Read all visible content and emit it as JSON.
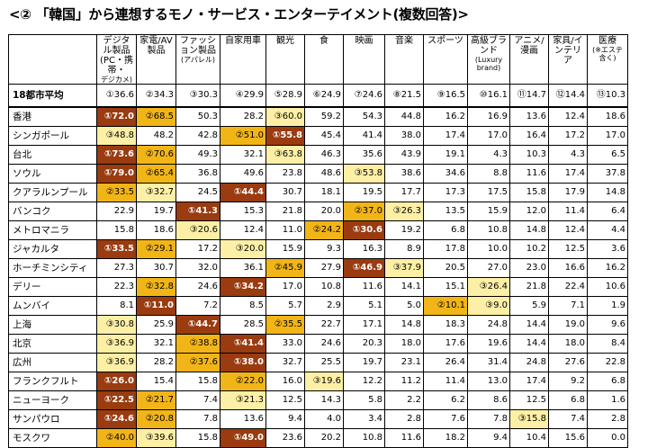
{
  "title": "<② 「韓国」から連想するモノ・サービス・エンターテイメント(複数回答)>",
  "headers": [
    {
      "main": "",
      "sub": ""
    },
    {
      "main": "デジタル製品(PC・携帯・",
      "sub": "デジカメ)"
    },
    {
      "main": "家電/AV製品",
      "sub": ""
    },
    {
      "main": "ファッション製品",
      "sub": "(アパレル)"
    },
    {
      "main": "自家用車",
      "sub": ""
    },
    {
      "main": "観光",
      "sub": ""
    },
    {
      "main": "食",
      "sub": ""
    },
    {
      "main": "映画",
      "sub": ""
    },
    {
      "main": "音楽",
      "sub": ""
    },
    {
      "main": "スポーツ",
      "sub": ""
    },
    {
      "main": "高級ブランド",
      "sub": "(Luxury brand)"
    },
    {
      "main": "アニメ/漫画",
      "sub": ""
    },
    {
      "main": "家具/インテリア",
      "sub": ""
    },
    {
      "main": "医療",
      "sub": "(※エステ含く)"
    }
  ],
  "rows": [
    {
      "city": "18都市平均",
      "cells": [
        [
          "①",
          "36.6"
        ],
        [
          "②",
          "34.3"
        ],
        [
          "③",
          "30.3"
        ],
        [
          "④",
          "29.9"
        ],
        [
          "⑤",
          "28.9"
        ],
        [
          "⑥",
          "24.9"
        ],
        [
          "⑦",
          "24.6"
        ],
        [
          "⑧",
          "21.5"
        ],
        [
          "⑨",
          "16.5"
        ],
        [
          "⑩",
          "16.1"
        ],
        [
          "⑪",
          "14.7"
        ],
        [
          "⑫",
          "14.4"
        ],
        [
          "⑬",
          "10.3"
        ]
      ]
    },
    {
      "city": "香港",
      "cells": [
        [
          "①",
          "72.0"
        ],
        [
          "②",
          "68.5"
        ],
        [
          "",
          "50.3"
        ],
        [
          "",
          "28.2"
        ],
        [
          "③",
          "60.0"
        ],
        [
          "",
          "59.2"
        ],
        [
          "",
          "54.3"
        ],
        [
          "",
          "44.8"
        ],
        [
          "",
          "16.2"
        ],
        [
          "",
          "16.9"
        ],
        [
          "",
          "13.6"
        ],
        [
          "",
          "12.4"
        ],
        [
          "",
          "18.6"
        ]
      ]
    },
    {
      "city": "シンガポール",
      "cells": [
        [
          "③",
          "48.8"
        ],
        [
          "",
          "48.2"
        ],
        [
          "",
          "42.8"
        ],
        [
          "②",
          "51.0"
        ],
        [
          "①",
          "55.8"
        ],
        [
          "",
          "45.4"
        ],
        [
          "",
          "41.4"
        ],
        [
          "",
          "38.0"
        ],
        [
          "",
          "17.4"
        ],
        [
          "",
          "17.0"
        ],
        [
          "",
          "16.4"
        ],
        [
          "",
          "17.2"
        ],
        [
          "",
          "17.0"
        ]
      ]
    },
    {
      "city": "台北",
      "cells": [
        [
          "①",
          "73.6"
        ],
        [
          "②",
          "70.6"
        ],
        [
          "",
          "49.3"
        ],
        [
          "",
          "32.1"
        ],
        [
          "③",
          "63.8"
        ],
        [
          "",
          "46.3"
        ],
        [
          "",
          "35.6"
        ],
        [
          "",
          "43.9"
        ],
        [
          "",
          "19.1"
        ],
        [
          "",
          "4.3"
        ],
        [
          "",
          "10.3"
        ],
        [
          "",
          "4.3"
        ],
        [
          "",
          "6.5"
        ]
      ]
    },
    {
      "city": "ソウル",
      "cells": [
        [
          "①",
          "79.0"
        ],
        [
          "②",
          "65.4"
        ],
        [
          "",
          "36.8"
        ],
        [
          "",
          "49.6"
        ],
        [
          "",
          "23.8"
        ],
        [
          "",
          "48.6"
        ],
        [
          "③",
          "53.8"
        ],
        [
          "",
          "38.6"
        ],
        [
          "",
          "34.6"
        ],
        [
          "",
          "8.8"
        ],
        [
          "",
          "11.6"
        ],
        [
          "",
          "17.4"
        ],
        [
          "",
          "37.8"
        ]
      ]
    },
    {
      "city": "クアラルンプール",
      "cells": [
        [
          "②",
          "33.5"
        ],
        [
          "③",
          "32.7"
        ],
        [
          "",
          "24.5"
        ],
        [
          "①",
          "44.4"
        ],
        [
          "",
          "30.7"
        ],
        [
          "",
          "18.1"
        ],
        [
          "",
          "19.5"
        ],
        [
          "",
          "17.7"
        ],
        [
          "",
          "17.3"
        ],
        [
          "",
          "17.5"
        ],
        [
          "",
          "15.8"
        ],
        [
          "",
          "17.9"
        ],
        [
          "",
          "14.8"
        ]
      ]
    },
    {
      "city": "バンコク",
      "cells": [
        [
          "",
          "22.9"
        ],
        [
          "",
          "19.7"
        ],
        [
          "①",
          "41.3"
        ],
        [
          "",
          "15.3"
        ],
        [
          "",
          "21.8"
        ],
        [
          "",
          "20.0"
        ],
        [
          "②",
          "37.0"
        ],
        [
          "③",
          "26.3"
        ],
        [
          "",
          "13.5"
        ],
        [
          "",
          "15.9"
        ],
        [
          "",
          "12.0"
        ],
        [
          "",
          "11.4"
        ],
        [
          "",
          "6.4"
        ]
      ]
    },
    {
      "city": "メトロマニラ",
      "cells": [
        [
          "",
          "15.8"
        ],
        [
          "",
          "18.6"
        ],
        [
          "③",
          "20.6"
        ],
        [
          "",
          "12.4"
        ],
        [
          "",
          "11.0"
        ],
        [
          "②",
          "24.2"
        ],
        [
          "①",
          "30.6"
        ],
        [
          "",
          "19.2"
        ],
        [
          "",
          "6.8"
        ],
        [
          "",
          "10.8"
        ],
        [
          "",
          "14.8"
        ],
        [
          "",
          "12.4"
        ],
        [
          "",
          "4.4"
        ]
      ]
    },
    {
      "city": "ジャカルタ",
      "cells": [
        [
          "①",
          "33.5"
        ],
        [
          "②",
          "29.1"
        ],
        [
          "",
          "17.2"
        ],
        [
          "③",
          "20.0"
        ],
        [
          "",
          "15.9"
        ],
        [
          "",
          "9.3"
        ],
        [
          "",
          "16.3"
        ],
        [
          "",
          "8.9"
        ],
        [
          "",
          "17.8"
        ],
        [
          "",
          "10.0"
        ],
        [
          "",
          "10.2"
        ],
        [
          "",
          "12.5"
        ],
        [
          "",
          "3.6"
        ]
      ]
    },
    {
      "city": "ホーチミンシティ",
      "cells": [
        [
          "",
          "27.3"
        ],
        [
          "",
          "30.7"
        ],
        [
          "",
          "32.0"
        ],
        [
          "",
          "36.1"
        ],
        [
          "②",
          "45.9"
        ],
        [
          "",
          "27.9"
        ],
        [
          "①",
          "46.9"
        ],
        [
          "③",
          "37.9"
        ],
        [
          "",
          "20.5"
        ],
        [
          "",
          "27.0"
        ],
        [
          "",
          "23.0"
        ],
        [
          "",
          "16.6"
        ],
        [
          "",
          "16.2"
        ]
      ]
    },
    {
      "city": "デリー",
      "cells": [
        [
          "",
          "22.3"
        ],
        [
          "②",
          "32.8"
        ],
        [
          "",
          "24.6"
        ],
        [
          "①",
          "34.2"
        ],
        [
          "",
          "17.0"
        ],
        [
          "",
          "10.8"
        ],
        [
          "",
          "11.6"
        ],
        [
          "",
          "14.1"
        ],
        [
          "",
          "15.1"
        ],
        [
          "③",
          "26.4"
        ],
        [
          "",
          "21.8"
        ],
        [
          "",
          "22.4"
        ],
        [
          "",
          "10.6"
        ]
      ]
    },
    {
      "city": "ムンバイ",
      "cells": [
        [
          "",
          "8.1"
        ],
        [
          "①",
          "11.0"
        ],
        [
          "",
          "7.2"
        ],
        [
          "",
          "8.5"
        ],
        [
          "",
          "5.7"
        ],
        [
          "",
          "2.9"
        ],
        [
          "",
          "5.1"
        ],
        [
          "",
          "5.0"
        ],
        [
          "②",
          "10.1"
        ],
        [
          "③",
          "9.0"
        ],
        [
          "",
          "5.9"
        ],
        [
          "",
          "7.1"
        ],
        [
          "",
          "1.9"
        ]
      ]
    },
    {
      "city": "上海",
      "cells": [
        [
          "③",
          "30.8"
        ],
        [
          "",
          "25.9"
        ],
        [
          "①",
          "44.7"
        ],
        [
          "",
          "28.5"
        ],
        [
          "②",
          "35.5"
        ],
        [
          "",
          "22.7"
        ],
        [
          "",
          "17.1"
        ],
        [
          "",
          "14.8"
        ],
        [
          "",
          "18.3"
        ],
        [
          "",
          "24.8"
        ],
        [
          "",
          "14.4"
        ],
        [
          "",
          "19.0"
        ],
        [
          "",
          "9.6"
        ]
      ]
    },
    {
      "city": "北京",
      "cells": [
        [
          "③",
          "36.9"
        ],
        [
          "",
          "32.1"
        ],
        [
          "②",
          "38.8"
        ],
        [
          "①",
          "41.4"
        ],
        [
          "",
          "33.0"
        ],
        [
          "",
          "24.6"
        ],
        [
          "",
          "20.3"
        ],
        [
          "",
          "18.0"
        ],
        [
          "",
          "17.6"
        ],
        [
          "",
          "19.6"
        ],
        [
          "",
          "14.4"
        ],
        [
          "",
          "18.0"
        ],
        [
          "",
          "8.4"
        ]
      ]
    },
    {
      "city": "広州",
      "cells": [
        [
          "③",
          "36.9"
        ],
        [
          "",
          "28.2"
        ],
        [
          "②",
          "37.6"
        ],
        [
          "①",
          "38.0"
        ],
        [
          "",
          "32.7"
        ],
        [
          "",
          "25.5"
        ],
        [
          "",
          "19.7"
        ],
        [
          "",
          "23.1"
        ],
        [
          "",
          "26.4"
        ],
        [
          "",
          "31.4"
        ],
        [
          "",
          "24.8"
        ],
        [
          "",
          "27.6"
        ],
        [
          "",
          "22.8"
        ]
      ]
    },
    {
      "city": "フランクフルト",
      "cells": [
        [
          "①",
          "26.0"
        ],
        [
          "",
          "15.4"
        ],
        [
          "",
          "15.8"
        ],
        [
          "②",
          "22.0"
        ],
        [
          "",
          "16.0"
        ],
        [
          "③",
          "19.6"
        ],
        [
          "",
          "12.2"
        ],
        [
          "",
          "11.2"
        ],
        [
          "",
          "11.4"
        ],
        [
          "",
          "13.0"
        ],
        [
          "",
          "17.4"
        ],
        [
          "",
          "9.2"
        ],
        [
          "",
          "6.8"
        ]
      ]
    },
    {
      "city": "ニューヨーク",
      "cells": [
        [
          "①",
          "22.5"
        ],
        [
          "②",
          "21.7"
        ],
        [
          "",
          "7.4"
        ],
        [
          "③",
          "21.3"
        ],
        [
          "",
          "12.5"
        ],
        [
          "",
          "14.3"
        ],
        [
          "",
          "5.8"
        ],
        [
          "",
          "2.2"
        ],
        [
          "",
          "6.2"
        ],
        [
          "",
          "8.6"
        ],
        [
          "",
          "12.5"
        ],
        [
          "",
          "6.8"
        ],
        [
          "",
          "1.6"
        ]
      ]
    },
    {
      "city": "サンパウロ",
      "cells": [
        [
          "①",
          "24.6"
        ],
        [
          "②",
          "20.8"
        ],
        [
          "",
          "7.8"
        ],
        [
          "",
          "13.6"
        ],
        [
          "",
          "9.4"
        ],
        [
          "",
          "4.0"
        ],
        [
          "",
          "3.4"
        ],
        [
          "",
          "2.8"
        ],
        [
          "",
          "7.6"
        ],
        [
          "",
          "7.8"
        ],
        [
          "③",
          "15.8"
        ],
        [
          "",
          "7.4"
        ],
        [
          "",
          "2.8"
        ]
      ]
    },
    {
      "city": "モスクワ",
      "cells": [
        [
          "②",
          "40.0"
        ],
        [
          "③",
          "39.6"
        ],
        [
          "",
          "15.8"
        ],
        [
          "①",
          "49.0"
        ],
        [
          "",
          "23.6"
        ],
        [
          "",
          "20.2"
        ],
        [
          "",
          "10.8"
        ],
        [
          "",
          "11.6"
        ],
        [
          "",
          "18.2"
        ],
        [
          "",
          "9.4"
        ],
        [
          "",
          "10.4"
        ],
        [
          "",
          "15.6"
        ],
        [
          "",
          "0.0"
        ]
      ]
    }
  ]
}
